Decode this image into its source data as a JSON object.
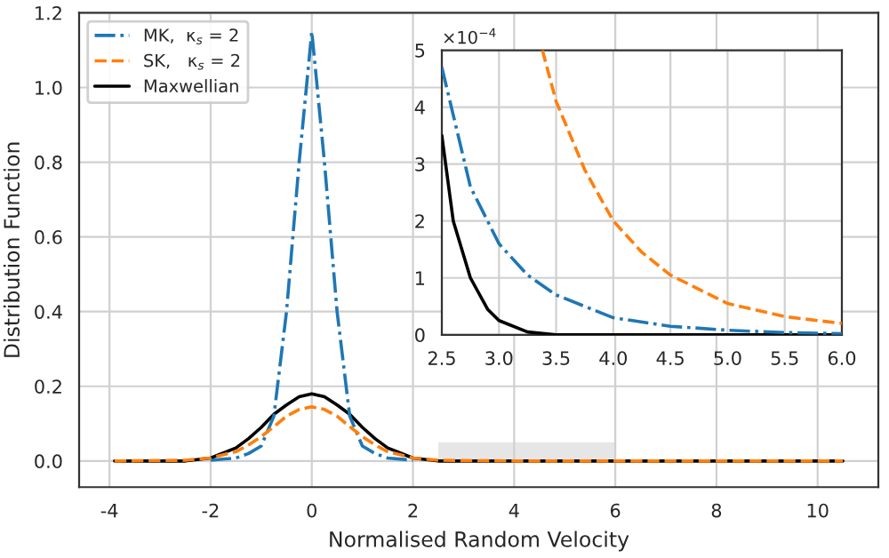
{
  "chart_data": [
    {
      "type": "line",
      "xlabel": "Normalised Random Velocity",
      "ylabel": "Distribution Function",
      "xlim": [
        -4.6,
        11.2
      ],
      "ylim": [
        -0.07,
        1.2
      ],
      "xticks": [
        -4,
        -2,
        0,
        2,
        4,
        6,
        8,
        10
      ],
      "yticks": [
        {
          "value": 0,
          "label": "0.0"
        },
        0.2,
        0.4,
        0.6,
        0.8,
        {
          "value": 1,
          "label": "1.0"
        },
        1.2
      ],
      "grid": true,
      "legend": "top left",
      "marker": "none",
      "x": [
        -3.9,
        -3,
        -2.5,
        -2,
        -1.5,
        -1.25,
        -1,
        -0.75,
        -0.5,
        -0.25,
        0,
        0.25,
        0.5,
        0.75,
        1,
        1.25,
        1.5,
        2,
        2.5,
        3,
        4,
        6,
        8,
        10.5
      ],
      "series": [
        {
          "name": "MK,  κ$_{s}$ = 2",
          "color": "#1f77b4",
          "line_style": "dashdot",
          "values": [
            null,
            null,
            null,
            0.002,
            0.008,
            0.02,
            0.04,
            0.12,
            0.4,
            0.8,
            1.15,
            0.8,
            0.4,
            0.12,
            0.04,
            0.02,
            0.008,
            0.002,
            null,
            null,
            null,
            null,
            null,
            null
          ]
        },
        {
          "name": "SK,   κ$_{s}$ = 2",
          "color": "#ff7f0e",
          "line_style": "dashed",
          "values": [
            0,
            0.001,
            0.002,
            0.008,
            0.025,
            0.043,
            0.065,
            0.092,
            0.12,
            0.138,
            0.145,
            0.138,
            0.12,
            0.092,
            0.065,
            0.043,
            0.025,
            0.008,
            0.002,
            0.001,
            0,
            0,
            0,
            0
          ]
        },
        {
          "name": "Maxwellian",
          "color": "#000000",
          "line_style": "solid",
          "values": [
            0,
            0,
            0,
            0.008,
            0.035,
            0.06,
            0.09,
            0.125,
            0.15,
            0.172,
            0.18,
            0.172,
            0.15,
            0.125,
            0.09,
            0.06,
            0.035,
            0.008,
            0,
            0,
            0,
            0,
            0,
            0
          ]
        }
      ]
    },
    {
      "type": "line",
      "xlim": [
        2.5,
        6
      ],
      "ylim": [
        0,
        5
      ],
      "xticks": [
        2.5,
        {
          "value": 3,
          "label": "3.0"
        },
        3.5,
        {
          "value": 4,
          "label": "4.0"
        },
        4.5,
        {
          "value": 5,
          "label": "5.0"
        },
        5.5,
        {
          "value": 6,
          "label": "6.0"
        }
      ],
      "yticks": [
        0,
        1,
        2,
        3,
        4,
        5
      ],
      "grid": true,
      "marker": "none",
      "annotations": [
        "×10$^{−4}$"
      ],
      "series": [
        {
          "color": "#1f77b4",
          "line_style": "dashdot",
          "x": [
            2.5,
            2.75,
            3.0,
            3.25,
            3.5,
            4.0,
            4.5,
            5.0,
            5.5,
            6.0
          ],
          "values": [
            4.7,
            2.6,
            1.6,
            1.05,
            0.7,
            0.3,
            0.15,
            0.08,
            0.04,
            0.02
          ]
        },
        {
          "color": "#ff7f0e",
          "line_style": "dashed",
          "x": [
            3.38,
            3.5,
            3.75,
            4.0,
            4.25,
            4.5,
            5.0,
            5.5,
            6.0
          ],
          "values": [
            5,
            4.1,
            2.9,
            2.0,
            1.45,
            1.05,
            0.55,
            0.32,
            0.2
          ]
        },
        {
          "color": "#000000",
          "line_style": "solid",
          "x": [
            2.5,
            2.6,
            2.75,
            2.9,
            3.0,
            3.25,
            3.5,
            6.0
          ],
          "values": [
            3.5,
            2.0,
            1.0,
            0.45,
            0.25,
            0.05,
            0,
            0
          ]
        }
      ]
    }
  ]
}
